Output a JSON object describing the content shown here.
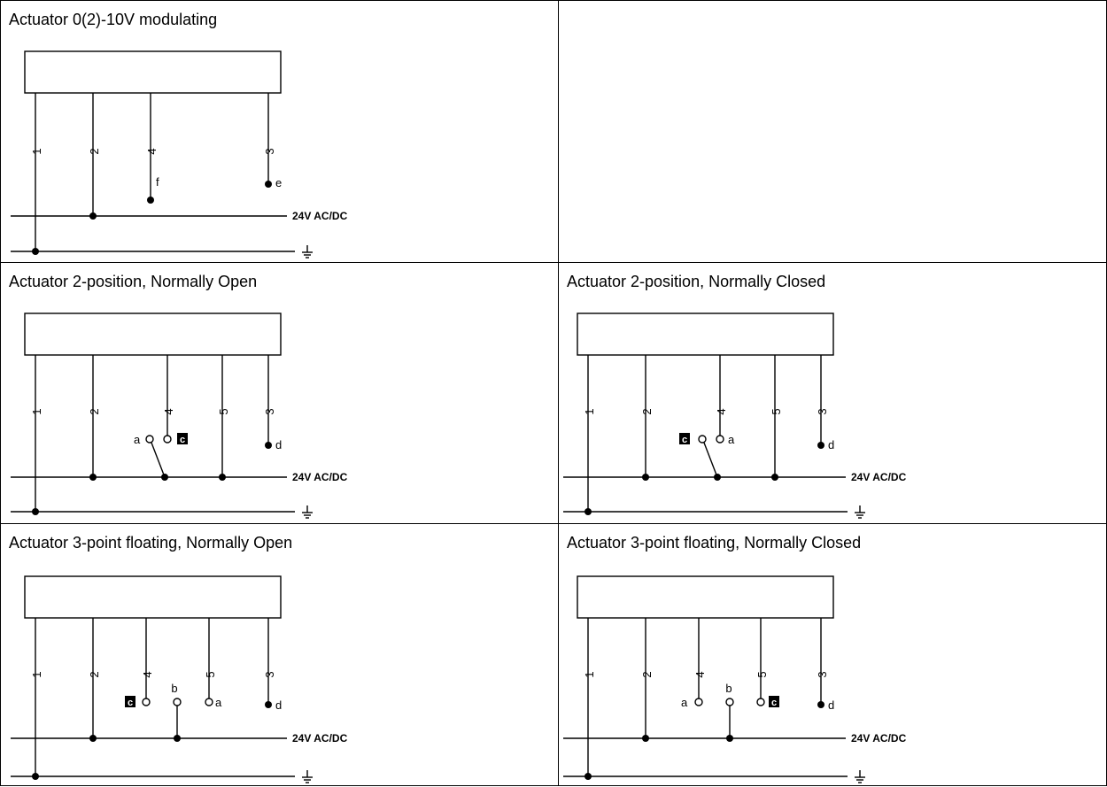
{
  "supply_label": "24V AC/DC",
  "ground_symbol": "⏚",
  "colors": {
    "line": "#000000",
    "background": "#ffffff",
    "badge_fill": "#000000",
    "badge_text": "#ffffff"
  },
  "panels": [
    {
      "title": "Actuator 0(2)-10V modulating",
      "terminals": [
        {
          "num": "1",
          "node": "gnd"
        },
        {
          "num": "2",
          "node": "v24"
        },
        {
          "num": "4",
          "dot": "f",
          "dot_side": "right"
        },
        {
          "num": "3",
          "dot": "e",
          "dot_side": "right"
        }
      ],
      "switch": null
    },
    {
      "title": "Actuator 2-position, Normally Open",
      "terminals": [
        {
          "num": "1",
          "node": "gnd"
        },
        {
          "num": "2",
          "node": "v24"
        },
        {
          "num": "4",
          "open": "c",
          "open_side": "right",
          "badge": true
        },
        {
          "num": "5",
          "node": "v24"
        },
        {
          "num": "3",
          "dot": "d",
          "dot_side": "right"
        }
      ],
      "switch": {
        "kind": "changeover",
        "left_label": "a",
        "right_label": "c",
        "right_badge": true
      }
    },
    {
      "title": "Actuator 2-position, Normally Closed",
      "terminals": [
        {
          "num": "1",
          "node": "gnd"
        },
        {
          "num": "2",
          "node": "v24"
        },
        {
          "num": "4",
          "open": "a",
          "open_side": "right"
        },
        {
          "num": "5",
          "node": "v24"
        },
        {
          "num": "3",
          "dot": "d",
          "dot_side": "right"
        }
      ],
      "switch": {
        "kind": "changeover",
        "left_label": "c",
        "left_badge": true,
        "right_label": "a"
      }
    },
    {
      "title": "Actuator 3-point floating, Normally Open",
      "terminals": [
        {
          "num": "1",
          "node": "gnd"
        },
        {
          "num": "2",
          "node": "v24"
        },
        {
          "num": "4",
          "open": "c",
          "open_side": "left",
          "badge": true
        },
        {
          "num": "5",
          "open": "a",
          "open_side": "right"
        },
        {
          "num": "3",
          "dot": "d",
          "dot_side": "right"
        }
      ],
      "switch": {
        "kind": "floating",
        "common_label": "b"
      }
    },
    {
      "title": "Actuator 3-point floating, Normally Closed",
      "terminals": [
        {
          "num": "1",
          "node": "gnd"
        },
        {
          "num": "2",
          "node": "v24"
        },
        {
          "num": "4",
          "open": "a",
          "open_side": "left"
        },
        {
          "num": "5",
          "open": "c",
          "open_side": "right",
          "badge": true
        },
        {
          "num": "3",
          "dot": "d",
          "dot_side": "right"
        }
      ],
      "switch": {
        "kind": "floating",
        "common_label": "b"
      }
    }
  ]
}
